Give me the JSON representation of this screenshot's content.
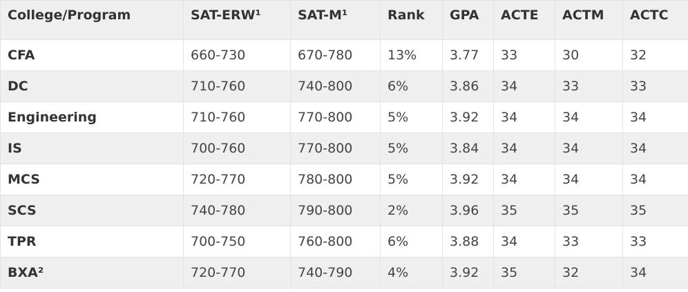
{
  "table": {
    "header": [
      "College/Program",
      "SAT-ERW¹",
      "SAT-M¹",
      "Rank",
      "GPA",
      "ACTE",
      "ACTM",
      "ACTC"
    ],
    "rows": [
      [
        "CFA",
        "660-730",
        "670-780",
        "13%",
        "3.77",
        "33",
        "30",
        "32"
      ],
      [
        "DC",
        "710-760",
        "740-800",
        "6%",
        "3.86",
        "34",
        "33",
        "33"
      ],
      [
        "Engineering",
        "710-760",
        "770-800",
        "5%",
        "3.92",
        "34",
        "34",
        "34"
      ],
      [
        "IS",
        "700-760",
        "770-800",
        "5%",
        "3.84",
        "34",
        "34",
        "34"
      ],
      [
        "MCS",
        "720-770",
        "780-800",
        "5%",
        "3.92",
        "34",
        "34",
        "34"
      ],
      [
        "SCS",
        "740-780",
        "790-800",
        "2%",
        "3.96",
        "35",
        "35",
        "35"
      ],
      [
        "TPR",
        "700-750",
        "760-800",
        "6%",
        "3.88",
        "34",
        "33",
        "33"
      ],
      [
        "BXA²",
        "720-770",
        "740-790",
        "4%",
        "3.92",
        "35",
        "32",
        "34"
      ]
    ]
  }
}
